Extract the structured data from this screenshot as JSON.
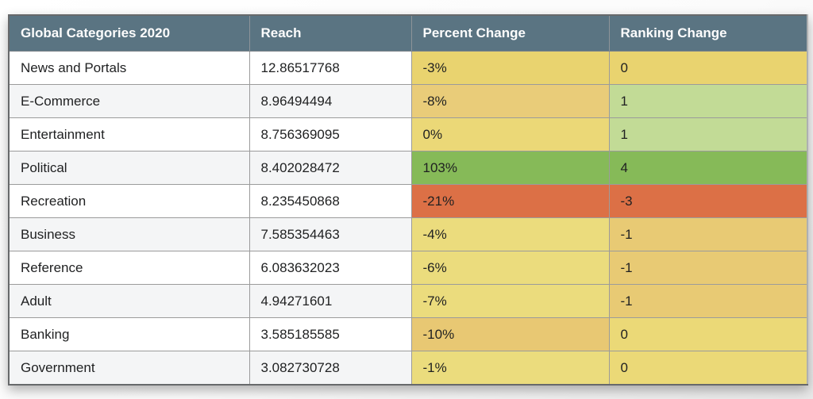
{
  "chart_data": {
    "type": "table",
    "title": "Global Categories 2020",
    "columns": [
      "Global Categories 2020",
      "Reach",
      "Percent Change",
      "Ranking Change"
    ],
    "rows": [
      [
        "News and Portals",
        12.86517768,
        "-3%",
        0
      ],
      [
        "E-Commerce",
        8.96494494,
        "-8%",
        1
      ],
      [
        "Entertainment",
        8.756369095,
        "0%",
        1
      ],
      [
        "Political",
        8.402028472,
        "103%",
        4
      ],
      [
        "Recreation",
        8.235450868,
        "-21%",
        -3
      ],
      [
        "Business",
        7.585354463,
        "-4%",
        -1
      ],
      [
        "Reference",
        6.083632023,
        "-6%",
        -1
      ],
      [
        "Adult",
        4.94271601,
        "-7%",
        -1
      ],
      [
        "Banking",
        3.585185585,
        "-10%",
        0
      ],
      [
        "Government",
        3.082730728,
        "-1%",
        0
      ]
    ]
  },
  "table": {
    "columns": [
      "Global Categories 2020",
      "Reach",
      "Percent Change",
      "Ranking Change"
    ],
    "rows": [
      {
        "category": "News and Portals",
        "reach": "12.86517768",
        "percent_change": "-3%",
        "percent_color": "#e9d36f",
        "ranking_change": "0",
        "ranking_color": "#e9d36f"
      },
      {
        "category": "E-Commerce",
        "reach": "8.96494494",
        "percent_change": "-8%",
        "percent_color": "#e9cc79",
        "ranking_change": "1",
        "ranking_color": "#c2db96"
      },
      {
        "category": "Entertainment",
        "reach": "8.756369095",
        "percent_change": "0%",
        "percent_color": "#ebd877",
        "ranking_change": "1",
        "ranking_color": "#c2db96"
      },
      {
        "category": "Political",
        "reach": "8.402028472",
        "percent_change": "103%",
        "percent_color": "#86ba58",
        "ranking_change": "4",
        "ranking_color": "#86ba58"
      },
      {
        "category": "Recreation",
        "reach": "8.235450868",
        "percent_change": "-21%",
        "percent_color": "#dc7046",
        "ranking_change": "-3",
        "ranking_color": "#dc7046"
      },
      {
        "category": "Business",
        "reach": "7.585354463",
        "percent_change": "-4%",
        "percent_color": "#ebdc7d",
        "ranking_change": "-1",
        "ranking_color": "#e8ca74"
      },
      {
        "category": "Reference",
        "reach": "6.083632023",
        "percent_change": "-6%",
        "percent_color": "#ebdc7d",
        "ranking_change": "-1",
        "ranking_color": "#e8ca74"
      },
      {
        "category": "Adult",
        "reach": "4.94271601",
        "percent_change": "-7%",
        "percent_color": "#ebdc7d",
        "ranking_change": "-1",
        "ranking_color": "#e8ca74"
      },
      {
        "category": "Banking",
        "reach": "3.585185585",
        "percent_change": "-10%",
        "percent_color": "#e8c873",
        "ranking_change": "0",
        "ranking_color": "#ebd977"
      },
      {
        "category": "Government",
        "reach": "3.082730728",
        "percent_change": "-1%",
        "percent_color": "#ebdc7d",
        "ranking_change": "0",
        "ranking_color": "#ebd977"
      }
    ]
  },
  "colors": {
    "header_bg": "#5a7482",
    "header_text": "#fdfdfd",
    "row_alt_bg": "#f4f5f6",
    "grid_border": "#9b9b9b",
    "strong_negative": "#dc7046",
    "mild_negative": "#e8ca74",
    "neutral_yellow": "#ebdc7d",
    "mild_positive": "#c2db96",
    "strong_positive": "#86ba58"
  }
}
